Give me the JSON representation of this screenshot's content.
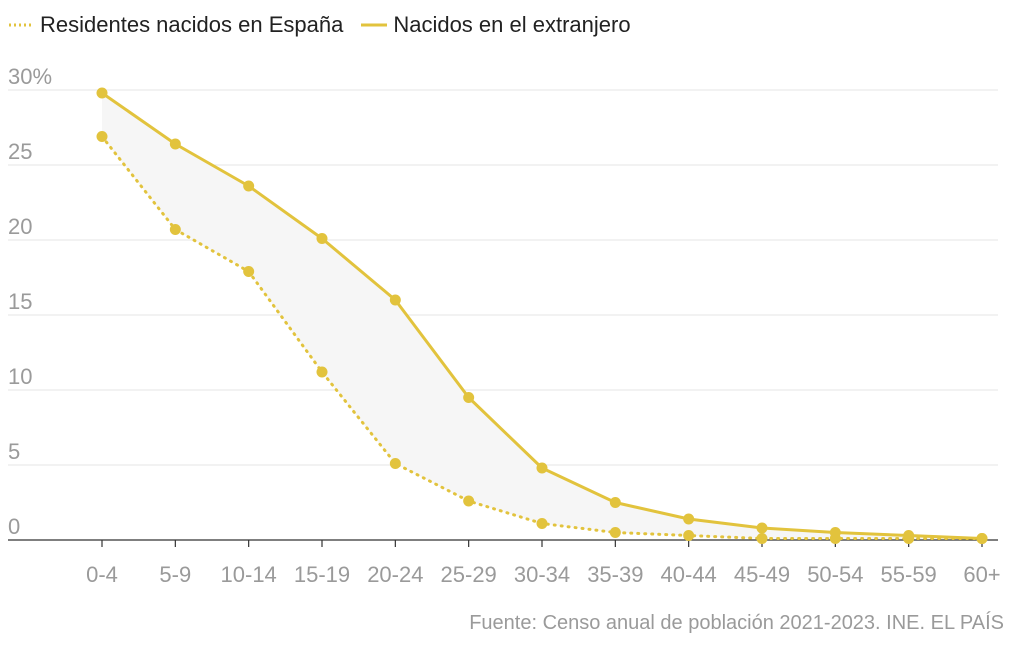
{
  "chart_data": {
    "type": "line",
    "categories": [
      "0-4",
      "5-9",
      "10-14",
      "15-19",
      "20-24",
      "25-29",
      "30-34",
      "35-39",
      "40-44",
      "45-49",
      "50-54",
      "55-59",
      "60+"
    ],
    "series": [
      {
        "name": "Residentes nacidos en España",
        "style": "dotted",
        "color": "#e2c33d",
        "values": [
          26.9,
          20.7,
          17.9,
          11.2,
          5.1,
          2.6,
          1.1,
          0.5,
          0.3,
          0.1,
          0.1,
          0.1,
          0.1
        ]
      },
      {
        "name": "Nacidos en el extranjero",
        "style": "solid",
        "color": "#e2c33d",
        "values": [
          29.8,
          26.4,
          23.6,
          20.1,
          16.0,
          9.5,
          4.8,
          2.5,
          1.4,
          0.8,
          0.5,
          0.3,
          0.1
        ]
      }
    ],
    "yticks": [
      "0",
      "5",
      "10",
      "15",
      "20",
      "25",
      "30%"
    ],
    "ytick_values": [
      0,
      5,
      10,
      15,
      20,
      25,
      30
    ],
    "ylim": [
      0,
      30
    ],
    "grid": true,
    "legend_position": "top-left",
    "fill_between": true
  },
  "legend": {
    "dotted_label": "Residentes nacidos en España",
    "solid_label": "Nacidos en el extranjero"
  },
  "source": "Fuente: Censo anual de población 2021-2023. INE. EL PAÍS"
}
